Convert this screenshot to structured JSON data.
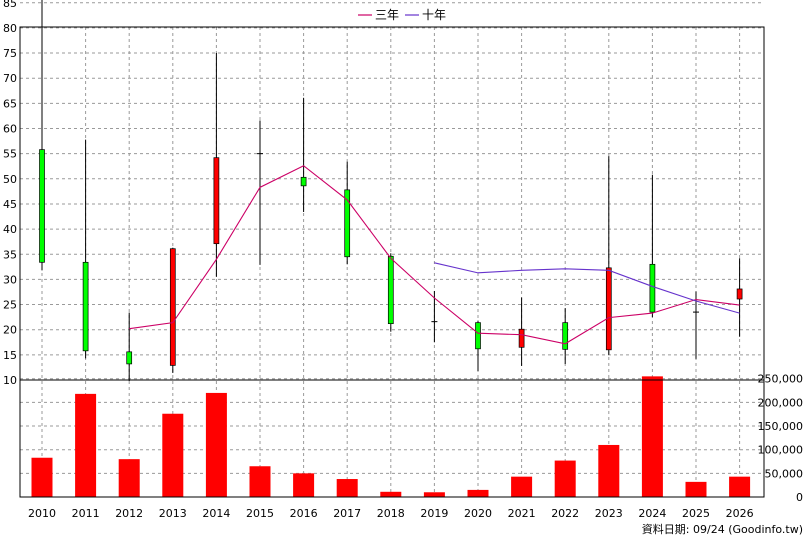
{
  "chart_data": {
    "type": "candlestick+line+bar",
    "legend": [
      {
        "label": "三年",
        "color": "#cc0066"
      },
      {
        "label": "十年",
        "color": "#6633cc"
      }
    ],
    "source_label": "資料日期: 09/24  (Goodinfo.tw)",
    "price_axis": {
      "min": 10,
      "max": 88,
      "ticks": [
        10,
        15,
        20,
        25,
        30,
        35,
        40,
        45,
        50,
        55,
        60,
        65,
        70,
        75,
        80,
        85
      ]
    },
    "volume_axis": {
      "min": 0,
      "max": 260000,
      "ticks": [
        0,
        50000,
        100000,
        150000,
        200000,
        250000
      ],
      "tick_labels": [
        "0",
        "50,000",
        "100,000",
        "150,000",
        "200,000",
        "250,000"
      ]
    },
    "years": [
      "2010",
      "2011",
      "2012",
      "2013",
      "2014",
      "2015",
      "2016",
      "2017",
      "2018",
      "2019",
      "2020",
      "2021",
      "2022",
      "2023",
      "2024",
      "2025",
      "2026"
    ],
    "candles": [
      {
        "open": 33.4,
        "close": 55.8,
        "high": 87.5,
        "low": 31.8,
        "color": "green"
      },
      {
        "open": 33.4,
        "close": 15.8,
        "high": 57.8,
        "low": 14.3,
        "color": "green"
      },
      {
        "open": 15.6,
        "close": 13.2,
        "high": 23.4,
        "low": 9.8,
        "color": "green"
      },
      {
        "open": 12.9,
        "close": 36.1,
        "high": 36.3,
        "low": 11.4,
        "color": "red"
      },
      {
        "open": 37.1,
        "close": 54.2,
        "high": 75.0,
        "low": 30.5,
        "color": "red"
      },
      {
        "open": 55.0,
        "close": 55.0,
        "high": 61.6,
        "low": 32.9,
        "color": "flat"
      },
      {
        "open": 50.3,
        "close": 48.6,
        "high": 66.1,
        "low": 43.4,
        "color": "green"
      },
      {
        "open": 47.8,
        "close": 34.5,
        "high": 53.4,
        "low": 33.0,
        "color": "green"
      },
      {
        "open": 34.6,
        "close": 21.2,
        "high": 35.2,
        "low": 19.6,
        "color": "green"
      },
      {
        "open": 21.6,
        "close": 21.6,
        "high": 27.7,
        "low": 17.5,
        "color": "flat"
      },
      {
        "open": 21.4,
        "close": 16.2,
        "high": 21.8,
        "low": 11.8,
        "color": "green"
      },
      {
        "open": 16.5,
        "close": 20.1,
        "high": 26.4,
        "low": 12.8,
        "color": "red"
      },
      {
        "open": 21.4,
        "close": 16.1,
        "high": 24.3,
        "low": 13.2,
        "color": "green"
      },
      {
        "open": 16.0,
        "close": 32.3,
        "high": 54.5,
        "low": 15.0,
        "color": "red"
      },
      {
        "open": 33.0,
        "close": 23.5,
        "high": 50.8,
        "low": 22.5,
        "color": "green"
      },
      {
        "open": 23.5,
        "close": 23.5,
        "high": 27.6,
        "low": 14.2,
        "color": "flat"
      },
      {
        "open": 26.1,
        "close": 28.1,
        "high": 34.2,
        "low": 18.6,
        "color": "red"
      }
    ],
    "series": [
      {
        "name": "三年",
        "color": "#cc0066",
        "values": [
          null,
          null,
          20.2,
          21.4,
          34.0,
          48.3,
          52.6,
          45.8,
          34.2,
          26.3,
          19.3,
          19.0,
          17.2,
          22.4,
          23.3,
          26.0,
          24.9
        ]
      },
      {
        "name": "十年",
        "color": "#6633cc",
        "values": [
          null,
          null,
          null,
          null,
          null,
          null,
          null,
          null,
          null,
          33.3,
          31.3,
          31.8,
          32.1,
          31.8,
          28.6,
          25.7,
          23.3
        ]
      }
    ],
    "volume": [
      83000,
      218000,
      80000,
      176000,
      220000,
      65000,
      50000,
      38000,
      11000,
      10000,
      15000,
      43000,
      77000,
      110000,
      255000,
      32000,
      43000
    ]
  }
}
